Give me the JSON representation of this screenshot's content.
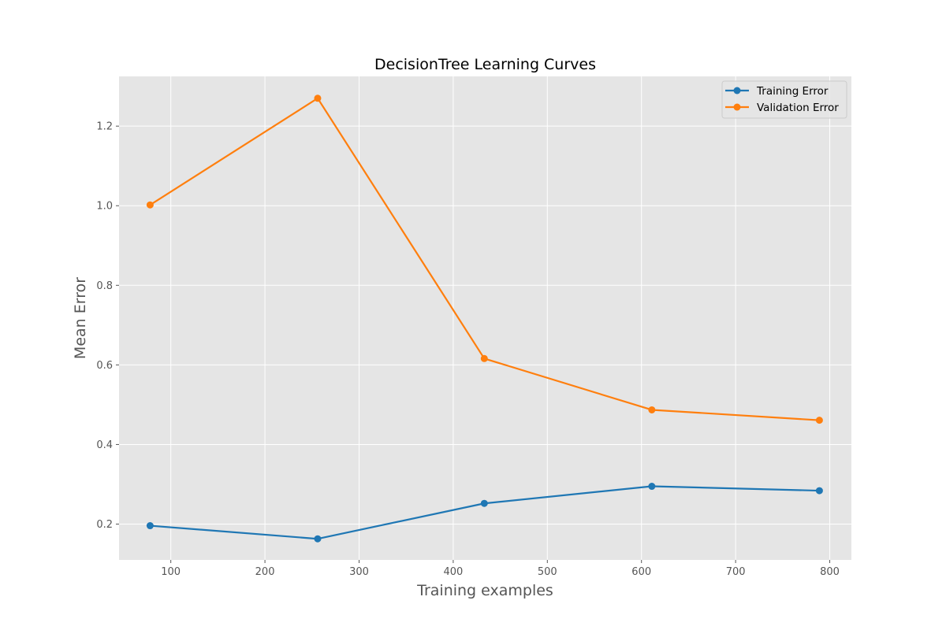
{
  "chart_data": {
    "type": "line",
    "title": "DecisionTree Learning Curves",
    "xlabel": "Training examples",
    "ylabel": "Mean Error",
    "xlim": [
      45,
      823
    ],
    "ylim": [
      0.11,
      1.325
    ],
    "x_ticks": [
      100,
      200,
      300,
      400,
      500,
      600,
      700,
      800
    ],
    "y_ticks": [
      0.2,
      0.4,
      0.6,
      0.8,
      1.0,
      1.2
    ],
    "y_tick_labels": [
      "0.2",
      "0.4",
      "0.6",
      "0.8",
      "1.0",
      "1.2"
    ],
    "grid": true,
    "legend_position": "top-right",
    "x": [
      78,
      256,
      433,
      611,
      789
    ],
    "series": [
      {
        "name": "Training Error",
        "color": "#1f77b4",
        "values": [
          0.196,
          0.163,
          0.252,
          0.295,
          0.284
        ]
      },
      {
        "name": "Validation Error",
        "color": "#ff7f0e",
        "values": [
          1.002,
          1.27,
          0.616,
          0.487,
          0.461
        ]
      }
    ]
  }
}
